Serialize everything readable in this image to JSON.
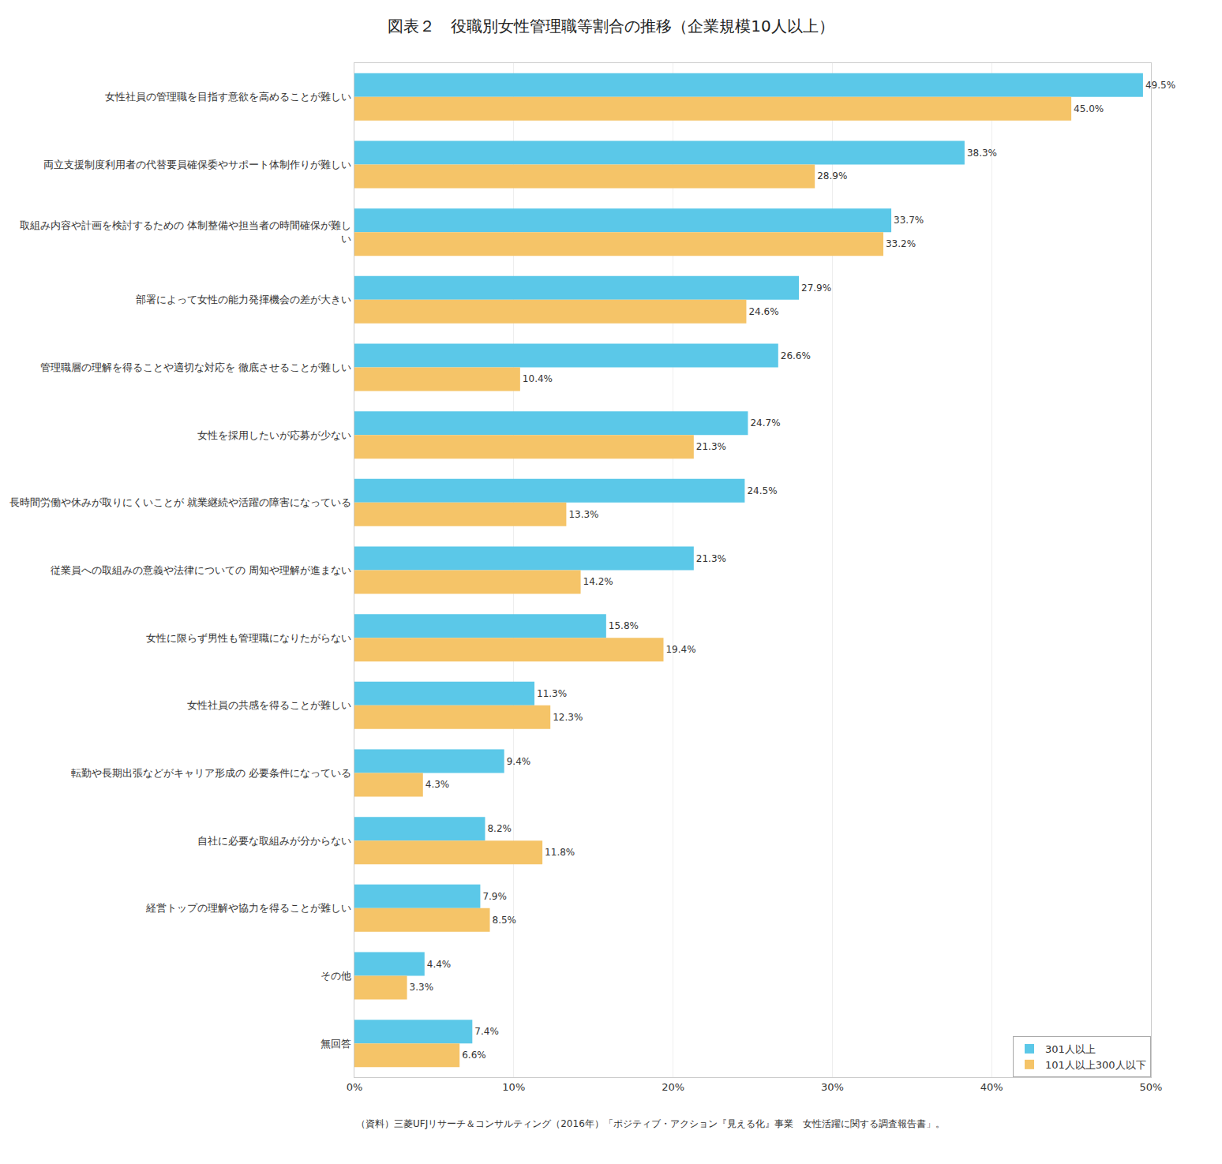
{
  "chart_data": {
    "type": "bar",
    "orientation": "horizontal",
    "title": "図表２　役職別女性管理職等割合の推移（企業規模10人以上）",
    "subtitle": "（資料）三菱UFJリサーチ＆コンサルティング（2016年）「ポジティブ・アクション『見える化』事業　女性活躍に関する調査報告書」。",
    "categories": [
      "女性社員の管理職を目指す意欲を高めることが難しい",
      "両立支援制度利用者の代替要員確保委やサポート体制作りが難しい",
      "取組み内容や計画を検討するための 体制整備や担当者の時間確保が難し\nい",
      "部署によって女性の能力発揮機会の差が大きい",
      "管理職層の理解を得ることや適切な対応を 徹底させることが難しい",
      "女性を採用したいが応募が少ない",
      "長時間労働や休みが取りにくいことが 就業継続や活躍の障害になっている",
      "従業員への取組みの意義や法律についての 周知や理解が進まない",
      "女性に限らず男性も管理職になりたがらない",
      "女性社員の共感を得ることが難しい",
      "転勤や長期出張などがキャリア形成の 必要条件になっている",
      "自社に必要な取組みが分からない",
      "経営トップの理解や協力を得ることが難しい",
      "その他",
      "無回答"
    ],
    "series": [
      {
        "name": "301人以上",
        "color": "#5BC8E8",
        "values": [
          49.5,
          38.3,
          33.7,
          27.9,
          26.6,
          24.7,
          24.5,
          21.3,
          15.8,
          11.3,
          9.4,
          8.2,
          7.9,
          4.4,
          7.4
        ],
        "value_labels": [
          "49.5%",
          "38.3%",
          "33.7%",
          "27.9%",
          "26.6%",
          "24.7%",
          "24.5%",
          "21.3%",
          "15.8%",
          "11.3%",
          "9.4%",
          "8.2%",
          "7.9%",
          "4.4%",
          "7.4%"
        ]
      },
      {
        "name": "101人以上300人以下",
        "color": "#F5C468",
        "values": [
          45.0,
          28.9,
          33.2,
          24.6,
          10.4,
          21.3,
          13.3,
          14.2,
          19.4,
          12.3,
          4.3,
          11.8,
          8.5,
          3.3,
          6.6
        ],
        "value_labels": [
          "45.0%",
          "28.9%",
          "33.2%",
          "24.6%",
          "10.4%",
          "21.3%",
          "13.3%",
          "14.2%",
          "19.4%",
          "12.3%",
          "4.3%",
          "11.8%",
          "8.5%",
          "3.3%",
          "6.6%"
        ]
      }
    ],
    "xlim": [
      0,
      50
    ],
    "xticks": [
      {
        "value": 0,
        "label": "0%"
      },
      {
        "value": 10,
        "label": "10%"
      },
      {
        "value": 20,
        "label": "20%"
      },
      {
        "value": 30,
        "label": "30%"
      },
      {
        "value": 40,
        "label": "40%"
      },
      {
        "value": 50,
        "label": "50%"
      }
    ],
    "grid": true,
    "legend": "lower right",
    "data_labels": true
  }
}
